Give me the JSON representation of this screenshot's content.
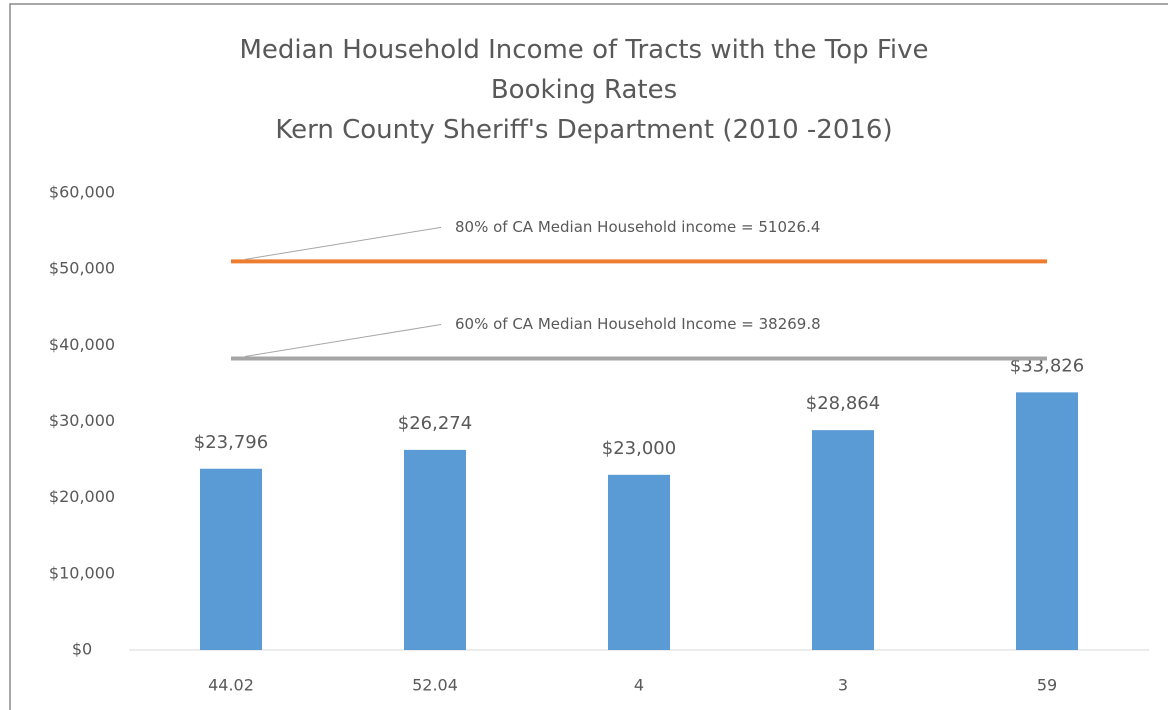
{
  "chart_data": {
    "type": "bar",
    "title": "Median Household Income of Tracts with the Top Five Booking Rates",
    "subtitle": "Kern County Sheriff's Department (2010 -2016)",
    "categories": [
      "44.02",
      "52.04",
      "4",
      "3",
      "59"
    ],
    "values": [
      23796,
      26274,
      23000,
      28864,
      33826
    ],
    "value_labels": [
      "$23,796",
      "$26,274",
      "$23,000",
      "$28,864",
      "$33,826"
    ],
    "color": "#5b9bd5",
    "ylim": [
      0,
      60000
    ],
    "yticks": [
      {
        "value": 0,
        "label": "$0"
      },
      {
        "value": 10000,
        "label": "$10,000"
      },
      {
        "value": 20000,
        "label": "$20,000"
      },
      {
        "value": 30000,
        "label": "$30,000"
      },
      {
        "value": 40000,
        "label": "$40,000"
      },
      {
        "value": 50000,
        "label": "$50,000"
      },
      {
        "value": 60000,
        "label": "$60,000"
      }
    ],
    "grid": false,
    "reference_lines": [
      {
        "label": "80% of CA Median Household income = 51026.4",
        "value": 51026.4,
        "color": "#ed7d31"
      },
      {
        "label": "60% of CA Median Household Income = 38269.8",
        "value": 38269.8,
        "color": "#a5a5a5"
      }
    ]
  }
}
